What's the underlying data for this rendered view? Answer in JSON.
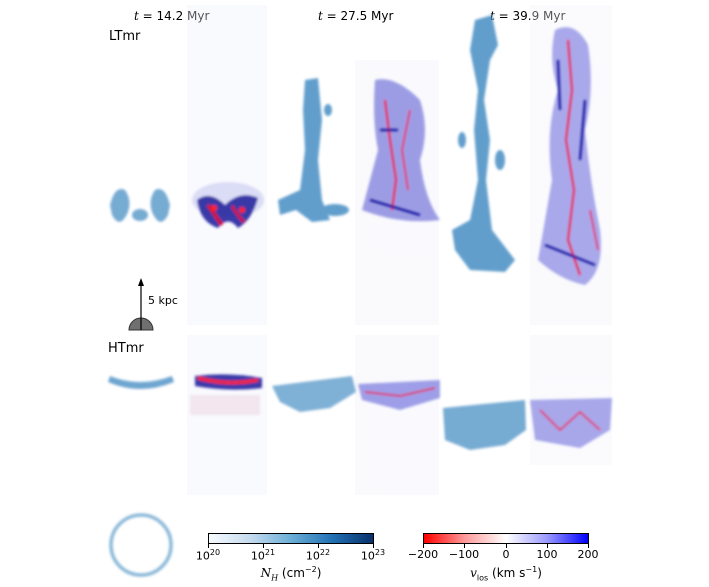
{
  "time_labels": [
    {
      "t": "t",
      "value": "= 14.2 Myr"
    },
    {
      "t": "t",
      "value": "= 27.5 Myr"
    },
    {
      "t": "t",
      "value": "= 39.9 Myr"
    }
  ],
  "rows": {
    "lt": "LTmr",
    "ht": "HTmr"
  },
  "scale_bar": {
    "label": "5 kpc"
  },
  "colorbar_density": {
    "ticks": [
      {
        "base": "10",
        "exp": "20"
      },
      {
        "base": "10",
        "exp": "21"
      },
      {
        "base": "10",
        "exp": "22"
      },
      {
        "base": "10",
        "exp": "23"
      }
    ],
    "title_symbol": "N",
    "title_sub": "H",
    "title_unit": " (cm",
    "title_unit_exp": "−2",
    "title_end": ")",
    "color_low": "#f7fbff",
    "color_high": "#08306b"
  },
  "colorbar_velocity": {
    "ticks": [
      "−200",
      "−100",
      "0",
      "100",
      "200"
    ],
    "title_symbol": "v",
    "title_sub": "los",
    "title_unit": " (km s",
    "title_unit_exp": "−1",
    "title_end": ")",
    "color_low": "#ff0000",
    "color_mid": "#ffffff",
    "color_high": "#0000ff"
  }
}
